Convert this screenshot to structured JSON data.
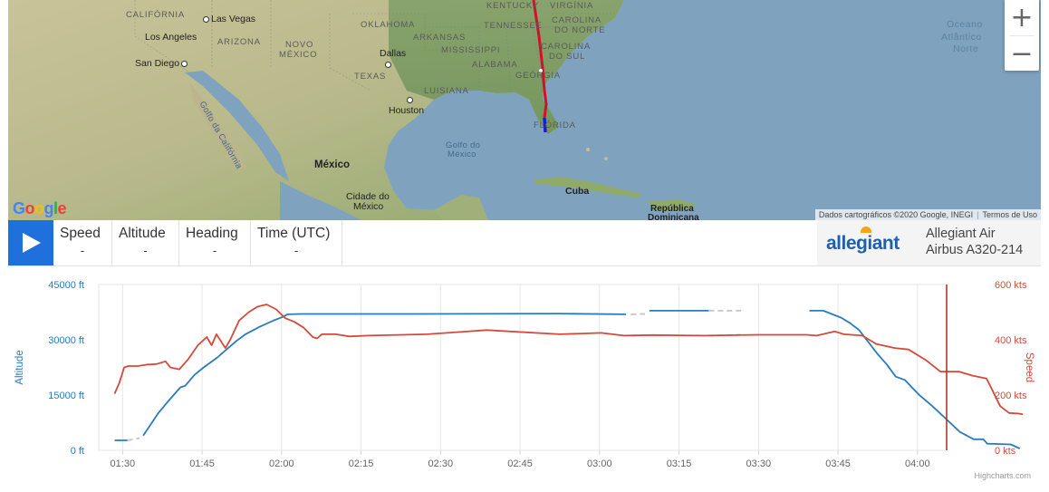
{
  "map": {
    "zoom_in": "+",
    "zoom_out": "−",
    "attribution": "Dados cartográficos ©2020 Google, INEGI",
    "terms": "Termos de Uso",
    "google_logo": "Google",
    "labels": {
      "california": "CALIFÓRNIA",
      "las_vegas": "Las Vegas",
      "los_angeles": "Los Angeles",
      "arizona": "ARIZONA",
      "san_diego": "San Diego",
      "novo_mexico_1": "NOVO",
      "novo_mexico_2": "MÉXICO",
      "oklahoma": "OKLAHOMA",
      "arkansas": "ARKANSAS",
      "tennessee": "TENNESSEE",
      "kentucky": "KENTUCKY",
      "virginia": "VIRGÍNIA",
      "carolina_norte_1": "CAROLINA",
      "carolina_norte_2": "DO NORTE",
      "carolina_sul_1": "CAROLINA",
      "carolina_sul_2": "DO SUL",
      "dallas": "Dallas",
      "mississippi": "MISSISSIPPI",
      "alabama": "ALABAMA",
      "georgia": "GEÓRGIA",
      "texas": "TEXAS",
      "luisiana": "LUISIANA",
      "houston": "Houston",
      "florida": "FLÓRIDA",
      "golfo_california": "Golfo da Califórnia",
      "golfo_mexico_1": "Golfo do",
      "golfo_mexico_2": "México",
      "mexico": "México",
      "cidade_mexico_1": "Cidade do",
      "cidade_mexico_2": "México",
      "cuba": "Cuba",
      "rep_dom_1": "República",
      "rep_dom_2": "Dominicana",
      "ocean_1": "Oceano",
      "ocean_2": "Atlântico",
      "ocean_3": "Norte"
    },
    "route_color": "#d0112b",
    "route_end_color": "#1a1adb"
  },
  "info_bar": {
    "stats": [
      {
        "title": "Speed",
        "value": "-"
      },
      {
        "title": "Altitude",
        "value": "-"
      },
      {
        "title": "Heading",
        "value": "-"
      },
      {
        "title": "Time (UTC)",
        "value": "-"
      }
    ],
    "airline_logo": "allegiant",
    "airline_name": "Allegiant Air",
    "aircraft": "Airbus A320-214",
    "play_color": "#1f6fdc"
  },
  "chart_data": {
    "type": "line",
    "credit": "Highcharts.com",
    "x_ticks": [
      "01:30",
      "01:45",
      "02:00",
      "02:15",
      "02:30",
      "02:45",
      "03:00",
      "03:15",
      "03:30",
      "03:45",
      "04:00"
    ],
    "x_range_minutes": [
      85.5,
      245.5
    ],
    "left_axis": {
      "title": "Altitude",
      "ticks": [
        "0 ft",
        "15000 ft",
        "30000 ft",
        "45000 ft"
      ],
      "range": [
        0,
        45000
      ],
      "color": "#2b7bbf"
    },
    "right_axis": {
      "title": "Speed",
      "ticks": [
        "0 kts",
        "200 kts",
        "400 kts",
        "600 kts"
      ],
      "range": [
        0,
        600
      ],
      "color": "#d44a3a"
    },
    "grid": "vertical",
    "series": [
      {
        "axis": "left",
        "color": "#2b7bbf",
        "gap_color": "#c8c8c8",
        "points": [
          [
            88.5,
            2700
          ],
          [
            90.9,
            2700
          ],
          [
            91.8,
            3000
          ],
          [
            92.5,
            3300
          ],
          [
            93.2,
            3300
          ],
          [
            93.9,
            4000
          ],
          [
            96.6,
            9800
          ],
          [
            98.3,
            12800
          ],
          [
            100.9,
            17100
          ],
          [
            101.8,
            17500
          ],
          [
            103.6,
            20500
          ],
          [
            105.3,
            22500
          ],
          [
            107.9,
            25200
          ],
          [
            109.7,
            27500
          ],
          [
            111.5,
            29700
          ],
          [
            113.2,
            31500
          ],
          [
            115.8,
            33500
          ],
          [
            118.4,
            35200
          ],
          [
            120.2,
            36200
          ],
          [
            121.1,
            36900
          ],
          [
            123.7,
            37000
          ],
          [
            144.4,
            37000
          ],
          [
            172.0,
            37100
          ],
          [
            185.0,
            36900
          ],
          [
            188.6,
            37000
          ],
          [
            189.4,
            37900
          ],
          [
            200.6,
            37900
          ],
          [
            206.7,
            37900
          ],
          [
            219.6,
            37900
          ],
          [
            222.2,
            37900
          ],
          [
            225.6,
            36000
          ],
          [
            227.3,
            34500
          ],
          [
            229.0,
            32600
          ],
          [
            232.5,
            26100
          ],
          [
            234.2,
            23300
          ],
          [
            235.9,
            20000
          ],
          [
            237.6,
            19100
          ],
          [
            240.2,
            15200
          ],
          [
            242.8,
            12000
          ],
          [
            245.4,
            8500
          ],
          [
            248.0,
            5000
          ],
          [
            250.6,
            3000
          ],
          [
            252.4,
            3000
          ],
          [
            253.2,
            1800
          ],
          [
            255.8,
            1700
          ],
          [
            257.6,
            1600
          ],
          [
            259.3,
            500
          ]
        ],
        "dashed_ranges": [
          [
            90.9,
            93.2
          ],
          [
            185.9,
            188.6
          ],
          [
            200.6,
            206.7
          ]
        ]
      },
      {
        "axis": "right",
        "color": "#d44a3a",
        "gap_color": "#c8c8c8",
        "points": [
          [
            88.5,
            205
          ],
          [
            89.4,
            245
          ],
          [
            90.3,
            300
          ],
          [
            91.1,
            305
          ],
          [
            92.9,
            305
          ],
          [
            94.6,
            310
          ],
          [
            96.4,
            312
          ],
          [
            98.1,
            322
          ],
          [
            99.0,
            300
          ],
          [
            100.7,
            293
          ],
          [
            102.4,
            330
          ],
          [
            104.2,
            380
          ],
          [
            105.9,
            410
          ],
          [
            106.8,
            380
          ],
          [
            107.7,
            420
          ],
          [
            109.4,
            370
          ],
          [
            110.3,
            400
          ],
          [
            112.0,
            470
          ],
          [
            113.8,
            500
          ],
          [
            115.5,
            520
          ],
          [
            117.2,
            528
          ],
          [
            119.0,
            510
          ],
          [
            120.7,
            478
          ],
          [
            122.4,
            465
          ],
          [
            124.1,
            445
          ],
          [
            125.9,
            410
          ],
          [
            126.7,
            405
          ],
          [
            127.6,
            420
          ],
          [
            130.2,
            420
          ],
          [
            132.8,
            412
          ],
          [
            136.3,
            415
          ],
          [
            147.5,
            420
          ],
          [
            158.7,
            435
          ],
          [
            172.5,
            420
          ],
          [
            180.3,
            425
          ],
          [
            184.6,
            415
          ],
          [
            190.0,
            417
          ],
          [
            200.0,
            415
          ],
          [
            210.0,
            418
          ],
          [
            219.0,
            418
          ],
          [
            221.0,
            415
          ],
          [
            224.4,
            430
          ],
          [
            226.1,
            420
          ],
          [
            229.6,
            415
          ],
          [
            232.2,
            385
          ],
          [
            235.7,
            370
          ],
          [
            238.3,
            365
          ],
          [
            241.7,
            325
          ],
          [
            244.3,
            285
          ],
          [
            247.8,
            285
          ],
          [
            250.4,
            270
          ],
          [
            253.0,
            260
          ],
          [
            253.8,
            230
          ],
          [
            255.6,
            160
          ],
          [
            257.3,
            135
          ],
          [
            259.0,
            133
          ],
          [
            259.9,
            130
          ]
        ],
        "dashed_ranges": [
          [
            185.9,
            188.6
          ],
          [
            200.6,
            206.7
          ]
        ]
      }
    ]
  }
}
